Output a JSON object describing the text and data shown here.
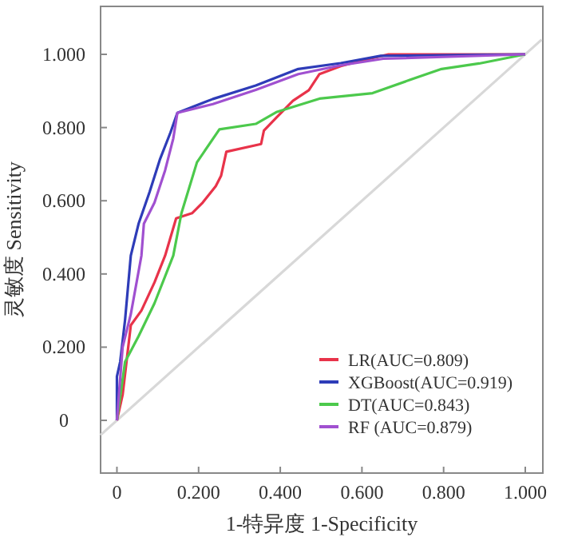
{
  "chart_data": {
    "type": "line",
    "xlabel": "1-特异度 1-Specificity",
    "ylabel": "灵敏度 Sensitivity",
    "xlim": [
      -0.04,
      1.043
    ],
    "ylim": [
      -0.144,
      1.131
    ],
    "xticks": [
      0,
      {
        "value": 0.2,
        "label": "0.200"
      },
      {
        "value": 0.4,
        "label": "0.400"
      },
      {
        "value": 0.6,
        "label": "0.600"
      },
      {
        "value": 0.8,
        "label": "0.800"
      },
      {
        "value": 1,
        "label": "1.000"
      }
    ],
    "yticks": [
      0,
      {
        "value": 0.2,
        "label": "0.200"
      },
      {
        "value": 0.4,
        "label": "0.400"
      },
      {
        "value": 0.6,
        "label": "0.600"
      },
      {
        "value": 0.8,
        "label": "0.800"
      },
      {
        "value": 1,
        "label": "1.000"
      }
    ],
    "legend": "bottom right",
    "series": [
      {
        "color": "#d8d8d8",
        "x": [
          -0.04,
          1.04
        ],
        "values": [
          -0.04,
          1.04
        ]
      },
      {
        "name": "LR(AUC=0.809)",
        "color": "#e8334a",
        "x": [
          0,
          0.014,
          0.034,
          0.06,
          0.092,
          0.118,
          0.145,
          0.184,
          0.21,
          0.242,
          0.255,
          0.268,
          0.353,
          0.36,
          0.392,
          0.431,
          0.47,
          0.496,
          0.548,
          0.6,
          0.665,
          1
        ],
        "values": [
          0,
          0.07,
          0.26,
          0.3,
          0.377,
          0.45,
          0.552,
          0.566,
          0.595,
          0.64,
          0.668,
          0.734,
          0.755,
          0.792,
          0.829,
          0.873,
          0.902,
          0.946,
          0.968,
          0.983,
          1,
          1
        ]
      },
      {
        "name": "XGBoost(AUC=0.919)",
        "color": "#2e3cb8",
        "x": [
          0,
          0,
          0.008,
          0.02,
          0.034,
          0.053,
          0.08,
          0.105,
          0.131,
          0.148,
          0.235,
          0.34,
          0.444,
          0.548,
          0.646,
          1
        ],
        "values": [
          0,
          0.12,
          0.16,
          0.275,
          0.45,
          0.537,
          0.624,
          0.712,
          0.786,
          0.84,
          0.878,
          0.915,
          0.96,
          0.976,
          0.996,
          1
        ]
      },
      {
        "name": "DT(AUC=0.843)",
        "color": "#4cc94c",
        "x": [
          0,
          0.02,
          0.053,
          0.092,
          0.138,
          0.158,
          0.196,
          0.251,
          0.34,
          0.392,
          0.496,
          0.626,
          0.717,
          0.795,
          0.887,
          1
        ],
        "values": [
          0,
          0.16,
          0.23,
          0.32,
          0.45,
          0.566,
          0.705,
          0.795,
          0.81,
          0.843,
          0.879,
          0.894,
          0.93,
          0.96,
          0.975,
          1
        ]
      },
      {
        "name": "RF (AUC=0.879)",
        "color": "#a050d0",
        "x": [
          0,
          0.014,
          0.034,
          0.06,
          0.066,
          0.092,
          0.118,
          0.138,
          0.148,
          0.235,
          0.34,
          0.444,
          0.548,
          0.652,
          1
        ],
        "values": [
          0,
          0.2,
          0.29,
          0.45,
          0.537,
          0.595,
          0.683,
          0.77,
          0.84,
          0.864,
          0.903,
          0.946,
          0.97,
          0.988,
          1
        ]
      }
    ]
  }
}
